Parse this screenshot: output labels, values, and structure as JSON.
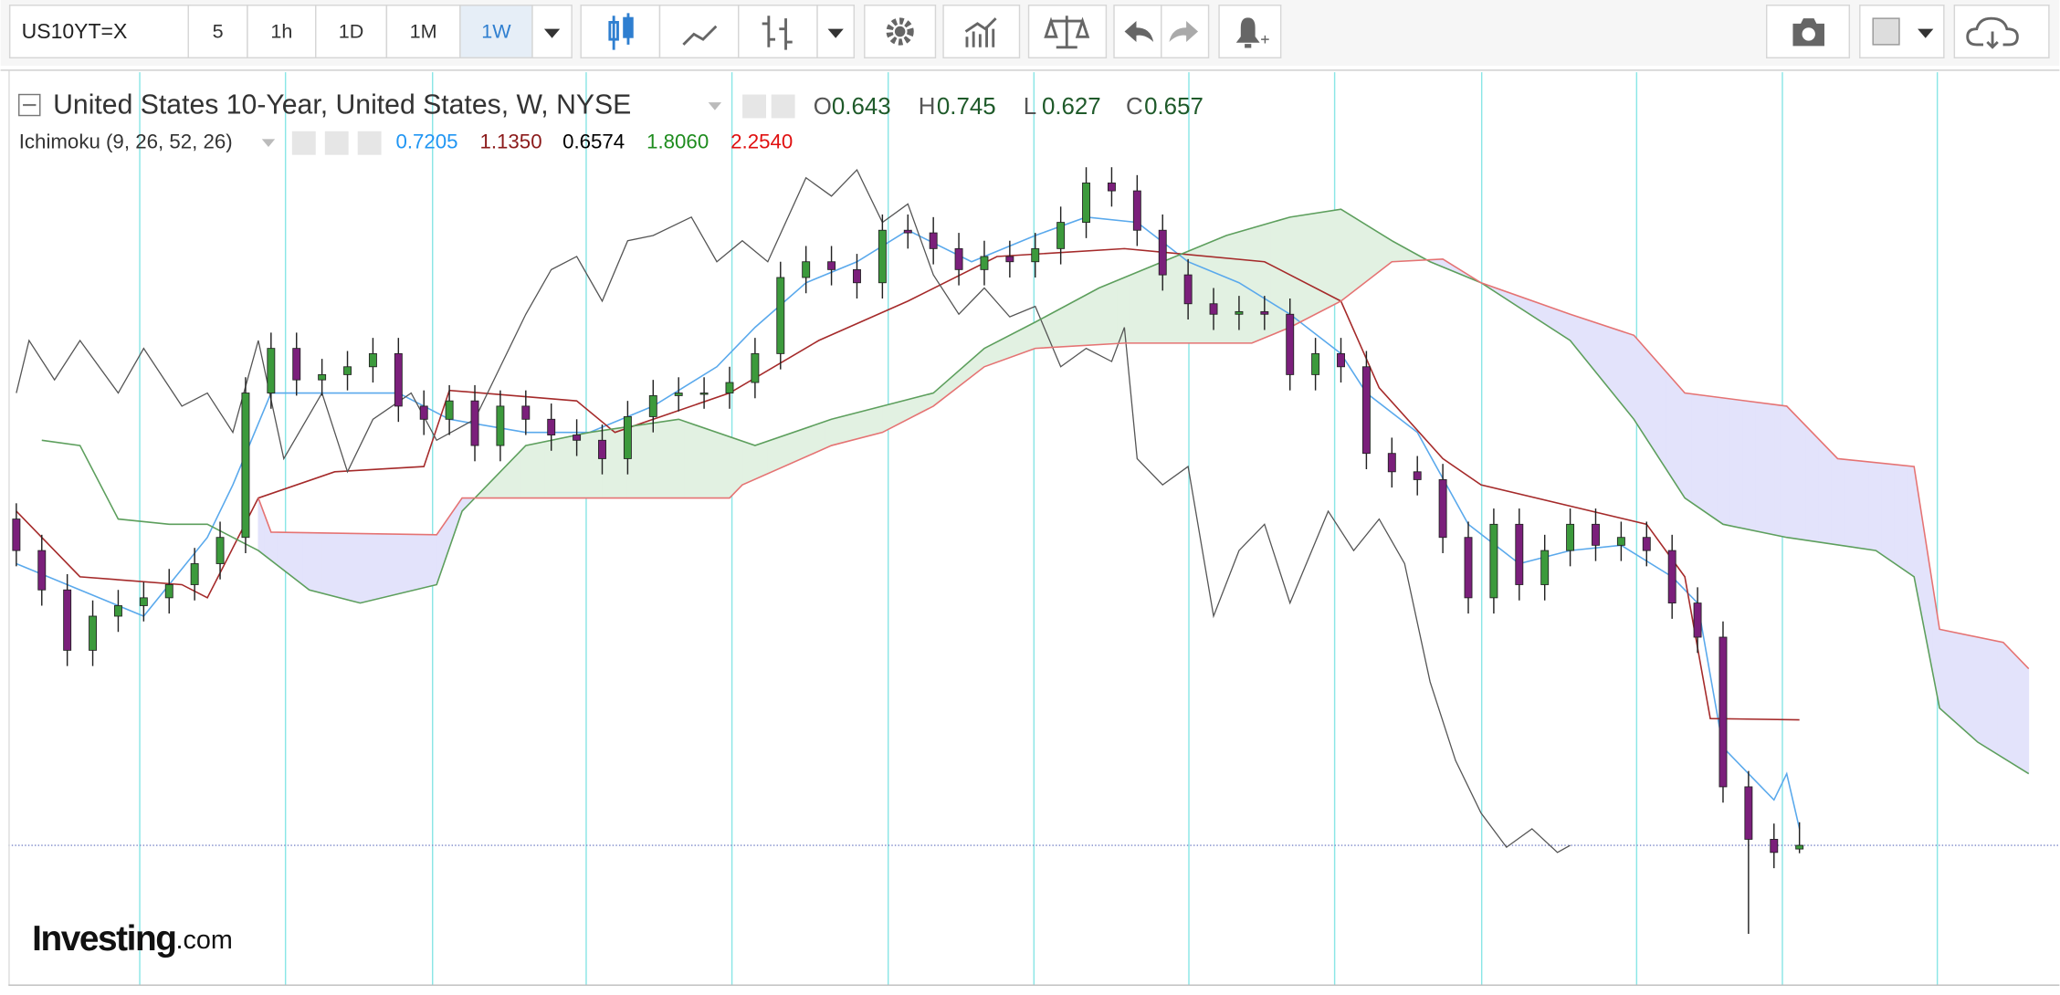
{
  "toolbar": {
    "symbol": "US10YT=X",
    "intervals": [
      "5",
      "1h",
      "1D",
      "1M",
      "1W"
    ],
    "active_interval": 4
  },
  "logo": {
    "main": "Investing",
    "suffix": ".com"
  },
  "chart_data": {
    "type": "candlestick",
    "title": "United States 10-Year, United States, W, NYSE",
    "ohlc": [
      {
        "label": "O",
        "value": 0.643
      },
      {
        "label": "H",
        "value": 0.745
      },
      {
        "label": "L",
        "value": 0.627
      },
      {
        "label": "C",
        "value": 0.657
      }
    ],
    "indicator": {
      "name": "Ichimoku (9, 26, 52, 26)",
      "values": [
        {
          "value": 0.7205,
          "color": "#2196f3"
        },
        {
          "value": 1.135,
          "label": "1.1350",
          "color": "#8b1a1a"
        },
        {
          "value": 0.6574,
          "color": "#000000"
        },
        {
          "value": 1.806,
          "label": "1.8060",
          "color": "#1e8c1e"
        },
        {
          "value": 2.254,
          "label": "2.2540",
          "color": "#e01010"
        }
      ]
    },
    "ylim": [
      0.127,
      3.602
    ],
    "candles": {
      "up_color": "#3c9a3c",
      "down_color": "#7b1f7b",
      "x": [
        0,
        2,
        4,
        6,
        8,
        10,
        12,
        14,
        16,
        18,
        20,
        22,
        24,
        26,
        28,
        30,
        32,
        34,
        36,
        38,
        40,
        42,
        44,
        46,
        48,
        50,
        52,
        54,
        56,
        58,
        60,
        62,
        64,
        66,
        68,
        70,
        72,
        74,
        76,
        78,
        80,
        82,
        84,
        86,
        88,
        90,
        92,
        94,
        96,
        98,
        100,
        102,
        104,
        106,
        108,
        110,
        112,
        114,
        116,
        118,
        120,
        122,
        124,
        126,
        128,
        130,
        132,
        134,
        136,
        138,
        140
      ],
      "open": [
        1.9,
        1.78,
        1.63,
        1.4,
        1.53,
        1.57,
        1.6,
        1.65,
        1.73,
        1.83,
        2.38,
        2.55,
        2.43,
        2.45,
        2.48,
        2.53,
        2.33,
        2.28,
        2.35,
        2.18,
        2.33,
        2.28,
        2.22,
        2.2,
        2.13,
        2.29,
        2.37,
        2.38,
        2.38,
        2.42,
        2.53,
        2.82,
        2.88,
        2.85,
        2.8,
        3.0,
        2.99,
        2.93,
        2.85,
        2.9,
        2.88,
        2.93,
        3.03,
        3.18,
        3.15,
        3.0,
        2.83,
        2.72,
        2.68,
        2.69,
        2.68,
        2.45,
        2.53,
        2.48,
        2.15,
        2.08,
        2.05,
        1.83,
        1.6,
        1.88,
        1.65,
        1.78,
        1.88,
        1.8,
        1.83,
        1.78,
        1.58,
        1.45,
        0.88,
        0.68,
        0.643
      ],
      "high": [
        1.96,
        1.84,
        1.69,
        1.59,
        1.63,
        1.66,
        1.71,
        1.79,
        1.89,
        2.44,
        2.61,
        2.61,
        2.51,
        2.54,
        2.59,
        2.59,
        2.39,
        2.41,
        2.41,
        2.39,
        2.39,
        2.34,
        2.28,
        2.26,
        2.35,
        2.43,
        2.44,
        2.44,
        2.48,
        2.59,
        2.88,
        2.94,
        2.94,
        2.91,
        3.06,
        3.06,
        3.05,
        2.99,
        2.96,
        2.96,
        2.99,
        3.09,
        3.24,
        3.24,
        3.21,
        3.06,
        2.89,
        2.78,
        2.75,
        2.75,
        2.74,
        2.59,
        2.59,
        2.54,
        2.21,
        2.14,
        2.11,
        1.89,
        1.94,
        1.94,
        1.84,
        1.94,
        1.94,
        1.89,
        1.89,
        1.84,
        1.64,
        1.51,
        0.94,
        0.74,
        0.745
      ],
      "low": [
        1.72,
        1.57,
        1.34,
        1.34,
        1.47,
        1.51,
        1.54,
        1.59,
        1.67,
        1.77,
        2.32,
        2.37,
        2.37,
        2.39,
        2.42,
        2.27,
        2.22,
        2.22,
        2.12,
        2.12,
        2.22,
        2.16,
        2.14,
        2.07,
        2.07,
        2.23,
        2.31,
        2.32,
        2.32,
        2.36,
        2.47,
        2.76,
        2.79,
        2.74,
        2.74,
        2.93,
        2.87,
        2.79,
        2.79,
        2.82,
        2.82,
        2.87,
        2.97,
        3.09,
        2.94,
        2.77,
        2.66,
        2.62,
        2.62,
        2.62,
        2.39,
        2.39,
        2.42,
        2.09,
        2.02,
        1.99,
        1.77,
        1.54,
        1.54,
        1.59,
        1.59,
        1.72,
        1.74,
        1.74,
        1.72,
        1.52,
        1.39,
        0.82,
        0.32,
        0.57,
        0.627
      ],
      "close": [
        1.78,
        1.63,
        1.4,
        1.53,
        1.57,
        1.6,
        1.65,
        1.73,
        1.83,
        2.38,
        2.55,
        2.43,
        2.45,
        2.48,
        2.53,
        2.33,
        2.28,
        2.35,
        2.18,
        2.33,
        2.28,
        2.22,
        2.2,
        2.13,
        2.29,
        2.37,
        2.38,
        2.38,
        2.42,
        2.53,
        2.82,
        2.88,
        2.85,
        2.8,
        3.0,
        2.99,
        2.93,
        2.85,
        2.9,
        2.88,
        2.93,
        3.03,
        3.18,
        3.15,
        3.0,
        2.83,
        2.72,
        2.68,
        2.69,
        2.68,
        2.45,
        2.53,
        2.48,
        2.15,
        2.08,
        2.05,
        1.83,
        1.6,
        1.88,
        1.65,
        1.78,
        1.88,
        1.8,
        1.83,
        1.78,
        1.58,
        1.45,
        0.88,
        0.68,
        0.63,
        0.657
      ]
    },
    "series": [
      {
        "color": "#5aa9ec",
        "x": [
          0,
          5,
          10,
          15,
          17,
          20,
          25,
          30,
          34,
          40,
          45,
          50,
          55,
          58,
          62,
          66,
          70,
          75,
          80,
          84,
          88,
          92,
          96,
          100,
          104,
          106,
          110,
          114,
          118,
          122,
          126,
          130,
          132,
          134,
          136,
          138,
          139,
          140
        ],
        "values": [
          1.73,
          1.63,
          1.53,
          1.83,
          2.03,
          2.38,
          2.38,
          2.38,
          2.28,
          2.23,
          2.23,
          2.33,
          2.48,
          2.63,
          2.8,
          2.88,
          3.0,
          2.88,
          2.98,
          3.05,
          3.03,
          2.88,
          2.8,
          2.68,
          2.53,
          2.38,
          2.23,
          1.88,
          1.73,
          1.78,
          1.8,
          1.68,
          1.58,
          1.03,
          0.93,
          0.83,
          0.93,
          0.7205
        ]
      },
      {
        "color": "#a52a2a",
        "x": [
          0,
          5,
          13,
          15,
          19,
          25,
          32,
          34,
          44,
          47,
          56,
          63,
          70,
          77,
          87,
          98,
          104,
          107,
          112,
          115,
          128,
          131,
          133,
          140
        ],
        "values": [
          1.93,
          1.68,
          1.65,
          1.6,
          1.98,
          2.08,
          2.1,
          2.39,
          2.35,
          2.23,
          2.38,
          2.58,
          2.73,
          2.9,
          2.93,
          2.88,
          2.73,
          2.4,
          2.13,
          2.03,
          1.88,
          1.68,
          1.14,
          1.135
        ]
      },
      {
        "color": "#555555",
        "x": [
          0,
          1,
          3,
          5,
          8,
          10,
          13,
          15,
          17,
          19,
          21,
          24,
          26,
          28,
          31,
          33,
          36,
          38,
          40,
          42,
          44,
          46,
          48,
          50,
          53,
          55,
          57,
          59,
          62,
          64,
          66,
          68,
          70,
          72,
          74,
          76,
          78,
          80,
          82,
          84,
          86,
          87,
          88,
          90,
          92,
          94,
          96,
          98,
          100,
          103,
          105,
          107,
          109,
          111,
          113,
          115,
          117,
          119,
          121,
          122
        ],
        "values": [
          2.38,
          2.58,
          2.43,
          2.58,
          2.38,
          2.55,
          2.33,
          2.38,
          2.23,
          2.58,
          2.13,
          2.38,
          2.08,
          2.28,
          2.38,
          2.2,
          2.28,
          2.48,
          2.68,
          2.85,
          2.9,
          2.73,
          2.96,
          2.98,
          3.05,
          2.88,
          2.96,
          2.88,
          3.2,
          3.13,
          3.23,
          3.03,
          3.1,
          2.83,
          2.68,
          2.78,
          2.67,
          2.71,
          2.48,
          2.55,
          2.5,
          2.63,
          2.13,
          2.03,
          2.1,
          1.53,
          1.78,
          1.88,
          1.58,
          1.93,
          1.78,
          1.9,
          1.73,
          1.28,
          0.98,
          0.78,
          0.65,
          0.72,
          0.63,
          0.657
        ]
      },
      {
        "color": "#5d9f5d",
        "x": [
          2,
          5,
          8,
          12,
          15,
          19,
          23,
          27,
          33,
          35,
          40,
          45,
          52,
          58,
          64,
          68,
          72,
          76,
          80,
          85,
          90,
          95,
          100,
          104,
          108,
          111,
          115,
          122,
          127,
          131,
          134,
          139,
          146,
          149,
          151,
          154,
          158
        ],
        "values": [
          2.2,
          2.18,
          1.9,
          1.88,
          1.88,
          1.78,
          1.63,
          1.58,
          1.65,
          1.93,
          2.18,
          2.23,
          2.28,
          2.18,
          2.28,
          2.33,
          2.38,
          2.55,
          2.65,
          2.78,
          2.88,
          2.98,
          3.05,
          3.08,
          2.96,
          2.88,
          2.8,
          2.58,
          2.28,
          1.98,
          1.88,
          1.83,
          1.78,
          1.68,
          1.18,
          1.05,
          0.93
        ]
      },
      {
        "color": "#e57373",
        "x": [
          19,
          20,
          33,
          35,
          56,
          57,
          64,
          68,
          72,
          76,
          80,
          87,
          97,
          100,
          104,
          108,
          112,
          115,
          122,
          127,
          131,
          139,
          143,
          149,
          151,
          156,
          158
        ],
        "values": [
          1.98,
          1.85,
          1.84,
          1.98,
          1.98,
          2.03,
          2.18,
          2.23,
          2.33,
          2.48,
          2.55,
          2.57,
          2.57,
          2.63,
          2.73,
          2.88,
          2.89,
          2.8,
          2.68,
          2.6,
          2.38,
          2.33,
          2.13,
          2.1,
          1.48,
          1.43,
          1.33
        ]
      }
    ],
    "cloud_colors": {
      "bullish": "#e2f1e2",
      "bearish": "#e3e3fb"
    }
  }
}
